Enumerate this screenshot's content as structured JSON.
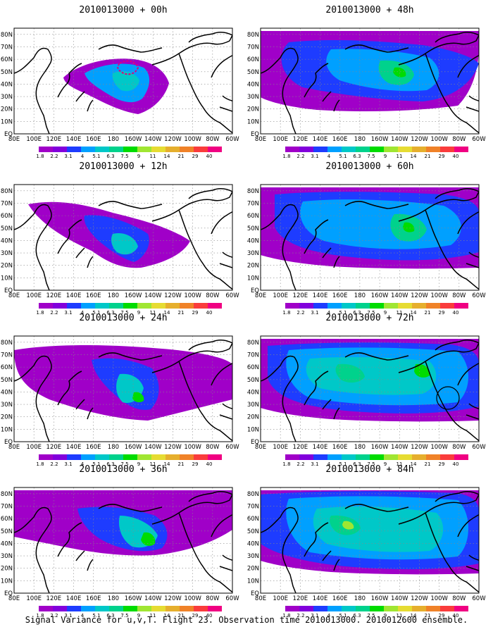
{
  "figure": {
    "caption": "Signal Variance for u,v,T. Flight 23. Observation time 2010013000. 2010012600 ensemble.",
    "panels": [
      {
        "title": "2010013000 + 00h"
      },
      {
        "title": "2010013000 + 12h"
      },
      {
        "title": "2010013000 + 24h"
      },
      {
        "title": "2010013000 + 36h"
      },
      {
        "title": "2010013000 + 48h"
      },
      {
        "title": "2010013000 + 60h"
      },
      {
        "title": "2010013000 + 72h"
      },
      {
        "title": "2010013000 + 84h"
      }
    ],
    "lon_ticks": [
      "80E",
      "100E",
      "120E",
      "140E",
      "160E",
      "180",
      "160W",
      "140W",
      "120W",
      "100W",
      "80W",
      "60W"
    ],
    "lat_ticks": [
      "EQ",
      "10N",
      "20N",
      "30N",
      "40N",
      "50N",
      "60N",
      "70N",
      "80N"
    ],
    "colorbar": {
      "labels": [
        "1.8",
        "2.2",
        "3.1",
        "4",
        "5.1",
        "6.3",
        "7.5",
        "9",
        "11",
        "14",
        "21",
        "29",
        "40"
      ],
      "colors": [
        "#a000c8",
        "#8200dc",
        "#1e3cff",
        "#00a0ff",
        "#00c8c8",
        "#00d28c",
        "#00dc00",
        "#a0e632",
        "#e6dc32",
        "#e6af2d",
        "#f08228",
        "#fa3c3c",
        "#f00082"
      ]
    }
  }
}
